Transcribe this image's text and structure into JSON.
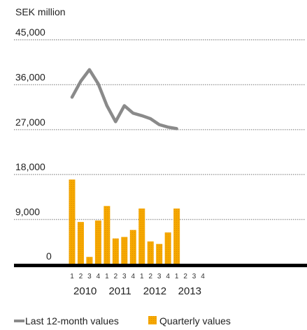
{
  "chart_data": {
    "type": "bar",
    "unit_label": "SEK million",
    "ylim": [
      0,
      45000
    ],
    "y_ticks": [
      {
        "value": 45000,
        "label": "45,000"
      },
      {
        "value": 36000,
        "label": "36,000"
      },
      {
        "value": 27000,
        "label": "27,000"
      },
      {
        "value": 18000,
        "label": "18,000"
      },
      {
        "value": 9000,
        "label": "9,000"
      },
      {
        "value": 0,
        "label": "0"
      }
    ],
    "quarter_labels": [
      "1",
      "2",
      "3",
      "4",
      "1",
      "2",
      "3",
      "4",
      "1",
      "2",
      "3",
      "4",
      "1",
      "2",
      "3",
      "4"
    ],
    "year_labels": [
      "2010",
      "2011",
      "2012",
      "2013"
    ],
    "series": [
      {
        "name": "Quarterly values",
        "type": "bar",
        "color": "#f5a800",
        "values": [
          17000,
          8500,
          1500,
          8800,
          11700,
          5200,
          5500,
          6900,
          11200,
          4600,
          4100,
          6400,
          11200
        ]
      },
      {
        "name": "Last 12-month values",
        "type": "line",
        "color": "#8a8a8a",
        "values": [
          33500,
          36700,
          39000,
          36200,
          31800,
          28600,
          31800,
          30300,
          29800,
          29200,
          28000,
          27500,
          27200
        ]
      }
    ],
    "legend": {
      "position": "bottom-left",
      "items": [
        {
          "label": "Last 12-month values",
          "color": "#8a8a8a",
          "shape": "line"
        },
        {
          "label": "Quarterly values",
          "color": "#f5a800",
          "shape": "square"
        }
      ]
    },
    "grid": true
  }
}
